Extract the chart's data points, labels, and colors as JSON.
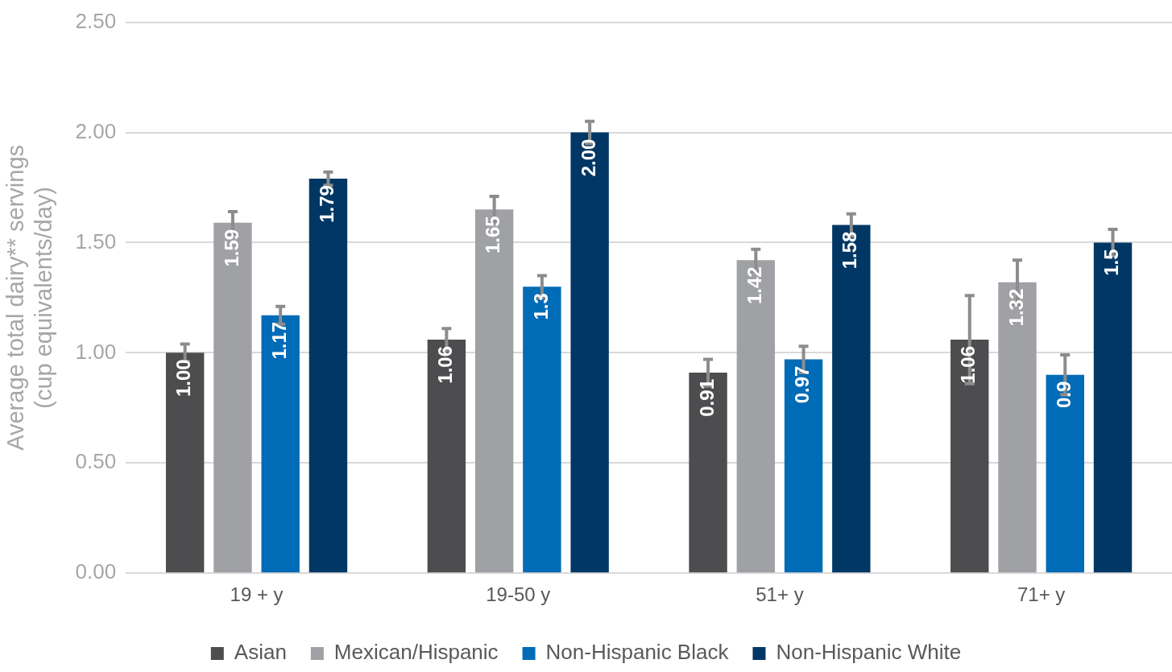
{
  "chart_data": {
    "type": "bar",
    "ylabel": "Average total dairy** servings\n(cup equivalents/day)",
    "categories": [
      "19 + y",
      "19-50 y",
      "51+ y",
      "71+ y"
    ],
    "series": [
      {
        "name": "Asian",
        "color": "#4d4d4f",
        "values": [
          1.0,
          1.06,
          0.91,
          1.06
        ],
        "errors": [
          0.04,
          0.05,
          0.06,
          0.2
        ],
        "value_labels": [
          "1.00",
          "1.06",
          "0.91",
          "1.06"
        ]
      },
      {
        "name": "Mexican/Hispanic",
        "color": "#a0a1a5",
        "values": [
          1.59,
          1.65,
          1.42,
          1.32
        ],
        "errors": [
          0.05,
          0.06,
          0.05,
          0.1
        ],
        "value_labels": [
          "1.59",
          "1.65",
          "1.42",
          "1.32"
        ]
      },
      {
        "name": "Non-Hispanic Black",
        "color": "#006bb6",
        "values": [
          1.17,
          1.3,
          0.97,
          0.9
        ],
        "errors": [
          0.04,
          0.05,
          0.06,
          0.09
        ],
        "value_labels": [
          "1.17",
          "1.3",
          "0.97",
          "0.9"
        ]
      },
      {
        "name": "Non-Hispanic White",
        "color": "#003764",
        "values": [
          1.79,
          2.0,
          1.58,
          1.5
        ],
        "errors": [
          0.03,
          0.05,
          0.05,
          0.06
        ],
        "value_labels": [
          "1.79",
          "2.00",
          "1.58",
          "1.5"
        ]
      }
    ],
    "ylim": [
      0,
      2.5
    ],
    "yticks": [
      {
        "value": 0,
        "label": "0.00"
      },
      {
        "value": 0.5,
        "label": "0.50"
      },
      {
        "value": 1,
        "label": "1.00"
      },
      {
        "value": 1.5,
        "label": "1.50"
      },
      {
        "value": 2,
        "label": "2.00"
      },
      {
        "value": 2.5,
        "label": "2.50"
      }
    ],
    "grid": "y",
    "legend": "bottom"
  }
}
